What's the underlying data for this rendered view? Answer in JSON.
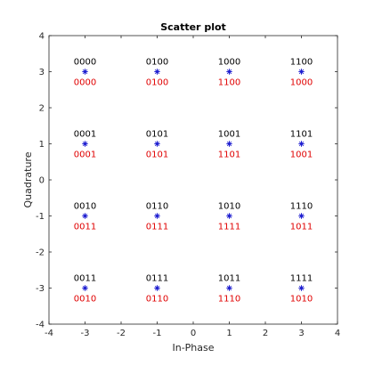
{
  "chart_data": {
    "type": "scatter",
    "title": "Scatter plot",
    "xlabel": "In-Phase",
    "ylabel": "Quadrature",
    "xlim": [
      -4,
      4
    ],
    "ylim": [
      -4,
      4
    ],
    "xticks": [
      "-4",
      "-3",
      "-2",
      "-1",
      "0",
      "1",
      "2",
      "3",
      "4"
    ],
    "yticks": [
      "-4",
      "-3",
      "-2",
      "-1",
      "0",
      "1",
      "2",
      "3",
      "4"
    ],
    "grid": false,
    "marker": "*",
    "colors": {
      "marker": "#1f1fd0",
      "label_top": "#000000",
      "label_bottom": "#e00000",
      "axes": "#262626"
    },
    "points": [
      {
        "x": -3,
        "y": 3,
        "label_top": "0000",
        "label_bottom": "0000"
      },
      {
        "x": -1,
        "y": 3,
        "label_top": "0100",
        "label_bottom": "0100"
      },
      {
        "x": 1,
        "y": 3,
        "label_top": "1000",
        "label_bottom": "1100"
      },
      {
        "x": 3,
        "y": 3,
        "label_top": "1100",
        "label_bottom": "1000"
      },
      {
        "x": -3,
        "y": 1,
        "label_top": "0001",
        "label_bottom": "0001"
      },
      {
        "x": -1,
        "y": 1,
        "label_top": "0101",
        "label_bottom": "0101"
      },
      {
        "x": 1,
        "y": 1,
        "label_top": "1001",
        "label_bottom": "1101"
      },
      {
        "x": 3,
        "y": 1,
        "label_top": "1101",
        "label_bottom": "1001"
      },
      {
        "x": -3,
        "y": -1,
        "label_top": "0010",
        "label_bottom": "0011"
      },
      {
        "x": -1,
        "y": -1,
        "label_top": "0110",
        "label_bottom": "0111"
      },
      {
        "x": 1,
        "y": -1,
        "label_top": "1010",
        "label_bottom": "1111"
      },
      {
        "x": 3,
        "y": -1,
        "label_top": "1110",
        "label_bottom": "1011"
      },
      {
        "x": -3,
        "y": -3,
        "label_top": "0011",
        "label_bottom": "0010"
      },
      {
        "x": -1,
        "y": -3,
        "label_top": "0111",
        "label_bottom": "0110"
      },
      {
        "x": 1,
        "y": -3,
        "label_top": "1011",
        "label_bottom": "1110"
      },
      {
        "x": 3,
        "y": -3,
        "label_top": "1111",
        "label_bottom": "1010"
      }
    ]
  }
}
